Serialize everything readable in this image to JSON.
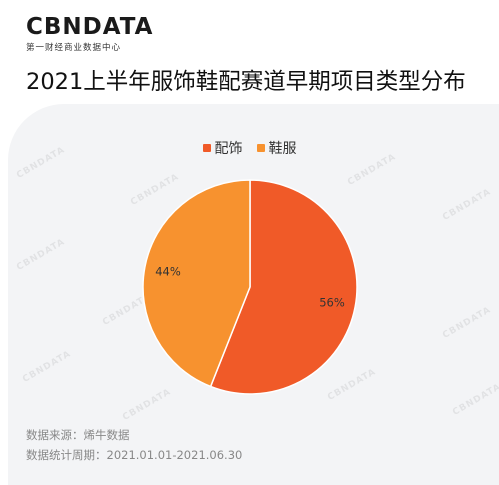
{
  "brand": {
    "logo": "CBNDATA",
    "subtitle": "第一财经商业数据中心"
  },
  "title": "2021上半年服饰鞋配赛道早期项目类型分布",
  "watermark": "CBNDATA",
  "chart_data": {
    "type": "pie",
    "title": "2021上半年服饰鞋配赛道早期项目类型分布",
    "legend": "top-center",
    "slices": [
      {
        "name": "配饰",
        "value": 56,
        "label": "56%",
        "color": "#f05a28"
      },
      {
        "name": "鞋服",
        "value": 44,
        "label": "44%",
        "color": "#f7922f"
      }
    ]
  },
  "footer": {
    "source": "数据来源：烯牛数据",
    "period": "数据统计周期：2021.01.01-2021.06.30"
  }
}
